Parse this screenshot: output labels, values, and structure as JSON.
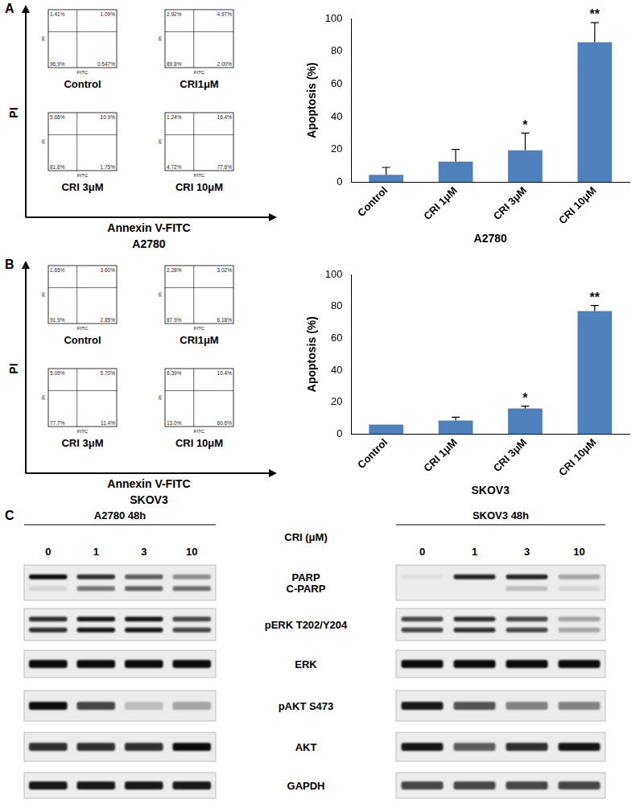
{
  "chart_data": [
    {
      "type": "bar",
      "x_label": "A2780",
      "y_label": "Apoptosis (%)",
      "categories": [
        "Control",
        "CRI 1μM",
        "CRI 3μM",
        "CRI 10μM"
      ],
      "values": [
        4.5,
        12.5,
        19.5,
        85.5
      ],
      "error": [
        4.5,
        7.5,
        10.5,
        12
      ],
      "significance": [
        null,
        null,
        "*",
        "**"
      ],
      "color": "#4f81bd",
      "ylim": [
        0,
        100
      ],
      "yticks": [
        0,
        20,
        40,
        60,
        80,
        100
      ],
      "grid": false
    },
    {
      "type": "bar",
      "x_label": "SKOV3",
      "y_label": "Apoptosis (%)",
      "categories": [
        "Control",
        "CRI 1μM",
        "CRI 3μM",
        "CRI 10μM"
      ],
      "values": [
        6,
        8.5,
        16,
        77
      ],
      "error": [
        0,
        2,
        1.5,
        3.5
      ],
      "significance": [
        null,
        null,
        "*",
        "**"
      ],
      "color": "#4f81bd",
      "ylim": [
        0,
        100
      ],
      "yticks": [
        0,
        20,
        40,
        60,
        80,
        100
      ],
      "grid": false
    }
  ],
  "flow_panels": [
    {
      "letter": "A",
      "cell_line": "A2780",
      "x_label": "Annexin V-FITC",
      "y_label": "PI",
      "plot_x_label": "FITC",
      "plot_y_label": "PI",
      "plots": [
        {
          "label": "Control",
          "ul": "1.41%",
          "ur": "1.09%",
          "ll": "96.9%",
          "lr": "0.547%"
        },
        {
          "label": "CRI1μM",
          "ul": "2.92%",
          "ur": "4.97%",
          "ll": "89.8%",
          "lr": "2.00%"
        },
        {
          "label": "CRI 3μM",
          "ul": "5.65%",
          "ur": "10.9%",
          "ll": "81.6%",
          "lr": "1.75%"
        },
        {
          "label": "CRI 10μM",
          "ul": "1.24%",
          "ur": "16.4%",
          "ll": "4.72%",
          "lr": "77.6%"
        }
      ]
    },
    {
      "letter": "B",
      "cell_line": "SKOV3",
      "x_label": "Annexin V-FITC",
      "y_label": "PI",
      "plot_x_label": "FITC",
      "plot_y_label": "PI",
      "plots": [
        {
          "label": "Control",
          "ul": "1.65%",
          "ur": "3.60%",
          "ll": "91.9%",
          "lr": "2.85%"
        },
        {
          "label": "CRI1μM",
          "ul": "2.28%",
          "ur": "3.02%",
          "ll": "87.9%",
          "lr": "6.18%"
        },
        {
          "label": "CRI 3μM",
          "ul": "5.09%",
          "ur": "5.70%",
          "ll": "77.7%",
          "lr": "11.4%"
        },
        {
          "label": "CRI 10μM",
          "ul": "6.39%",
          "ur": "10.4%",
          "ll": "13.0%",
          "lr": "60.6%"
        }
      ]
    }
  ],
  "western_blot": {
    "letter": "C",
    "dose_label": "CRI (μM)",
    "row_labels": [
      [
        "PARP",
        "C-PARP"
      ],
      [
        "pERK T202/Y204"
      ],
      [
        "ERK"
      ],
      [
        "pAKT S473"
      ],
      [
        "AKT"
      ],
      [
        "GAPDH"
      ]
    ],
    "blots": [
      {
        "title": "A2780 48h",
        "lanes": [
          "0",
          "1",
          "3",
          "10"
        ],
        "band_intensity": [
          [
            [
              0.95,
              0.8,
              0.6,
              0.4
            ],
            [
              0.1,
              0.5,
              0.6,
              0.55
            ]
          ],
          [
            [
              0.8,
              0.9,
              0.9,
              0.7
            ],
            [
              0.8,
              0.9,
              0.9,
              0.7
            ]
          ],
          [
            [
              0.95,
              0.95,
              0.95,
              0.95
            ]
          ],
          [
            [
              0.95,
              0.7,
              0.2,
              0.3
            ]
          ],
          [
            [
              0.8,
              0.8,
              0.8,
              0.95
            ]
          ],
          [
            [
              0.9,
              0.9,
              0.9,
              0.9
            ]
          ]
        ]
      },
      {
        "title": "SKOV3 48h",
        "lanes": [
          "0",
          "1",
          "3",
          "10"
        ],
        "band_intensity": [
          [
            [
              0.05,
              0.85,
              0.85,
              0.3
            ],
            [
              0,
              0,
              0.2,
              0.1
            ]
          ],
          [
            [
              0.7,
              0.8,
              0.7,
              0.3
            ],
            [
              0.7,
              0.8,
              0.7,
              0.3
            ]
          ],
          [
            [
              0.95,
              0.95,
              0.95,
              0.95
            ]
          ],
          [
            [
              0.9,
              0.65,
              0.45,
              0.45
            ]
          ],
          [
            [
              0.9,
              0.6,
              0.8,
              0.9
            ]
          ],
          [
            [
              0.7,
              0.7,
              0.7,
              0.7
            ]
          ]
        ]
      }
    ]
  }
}
